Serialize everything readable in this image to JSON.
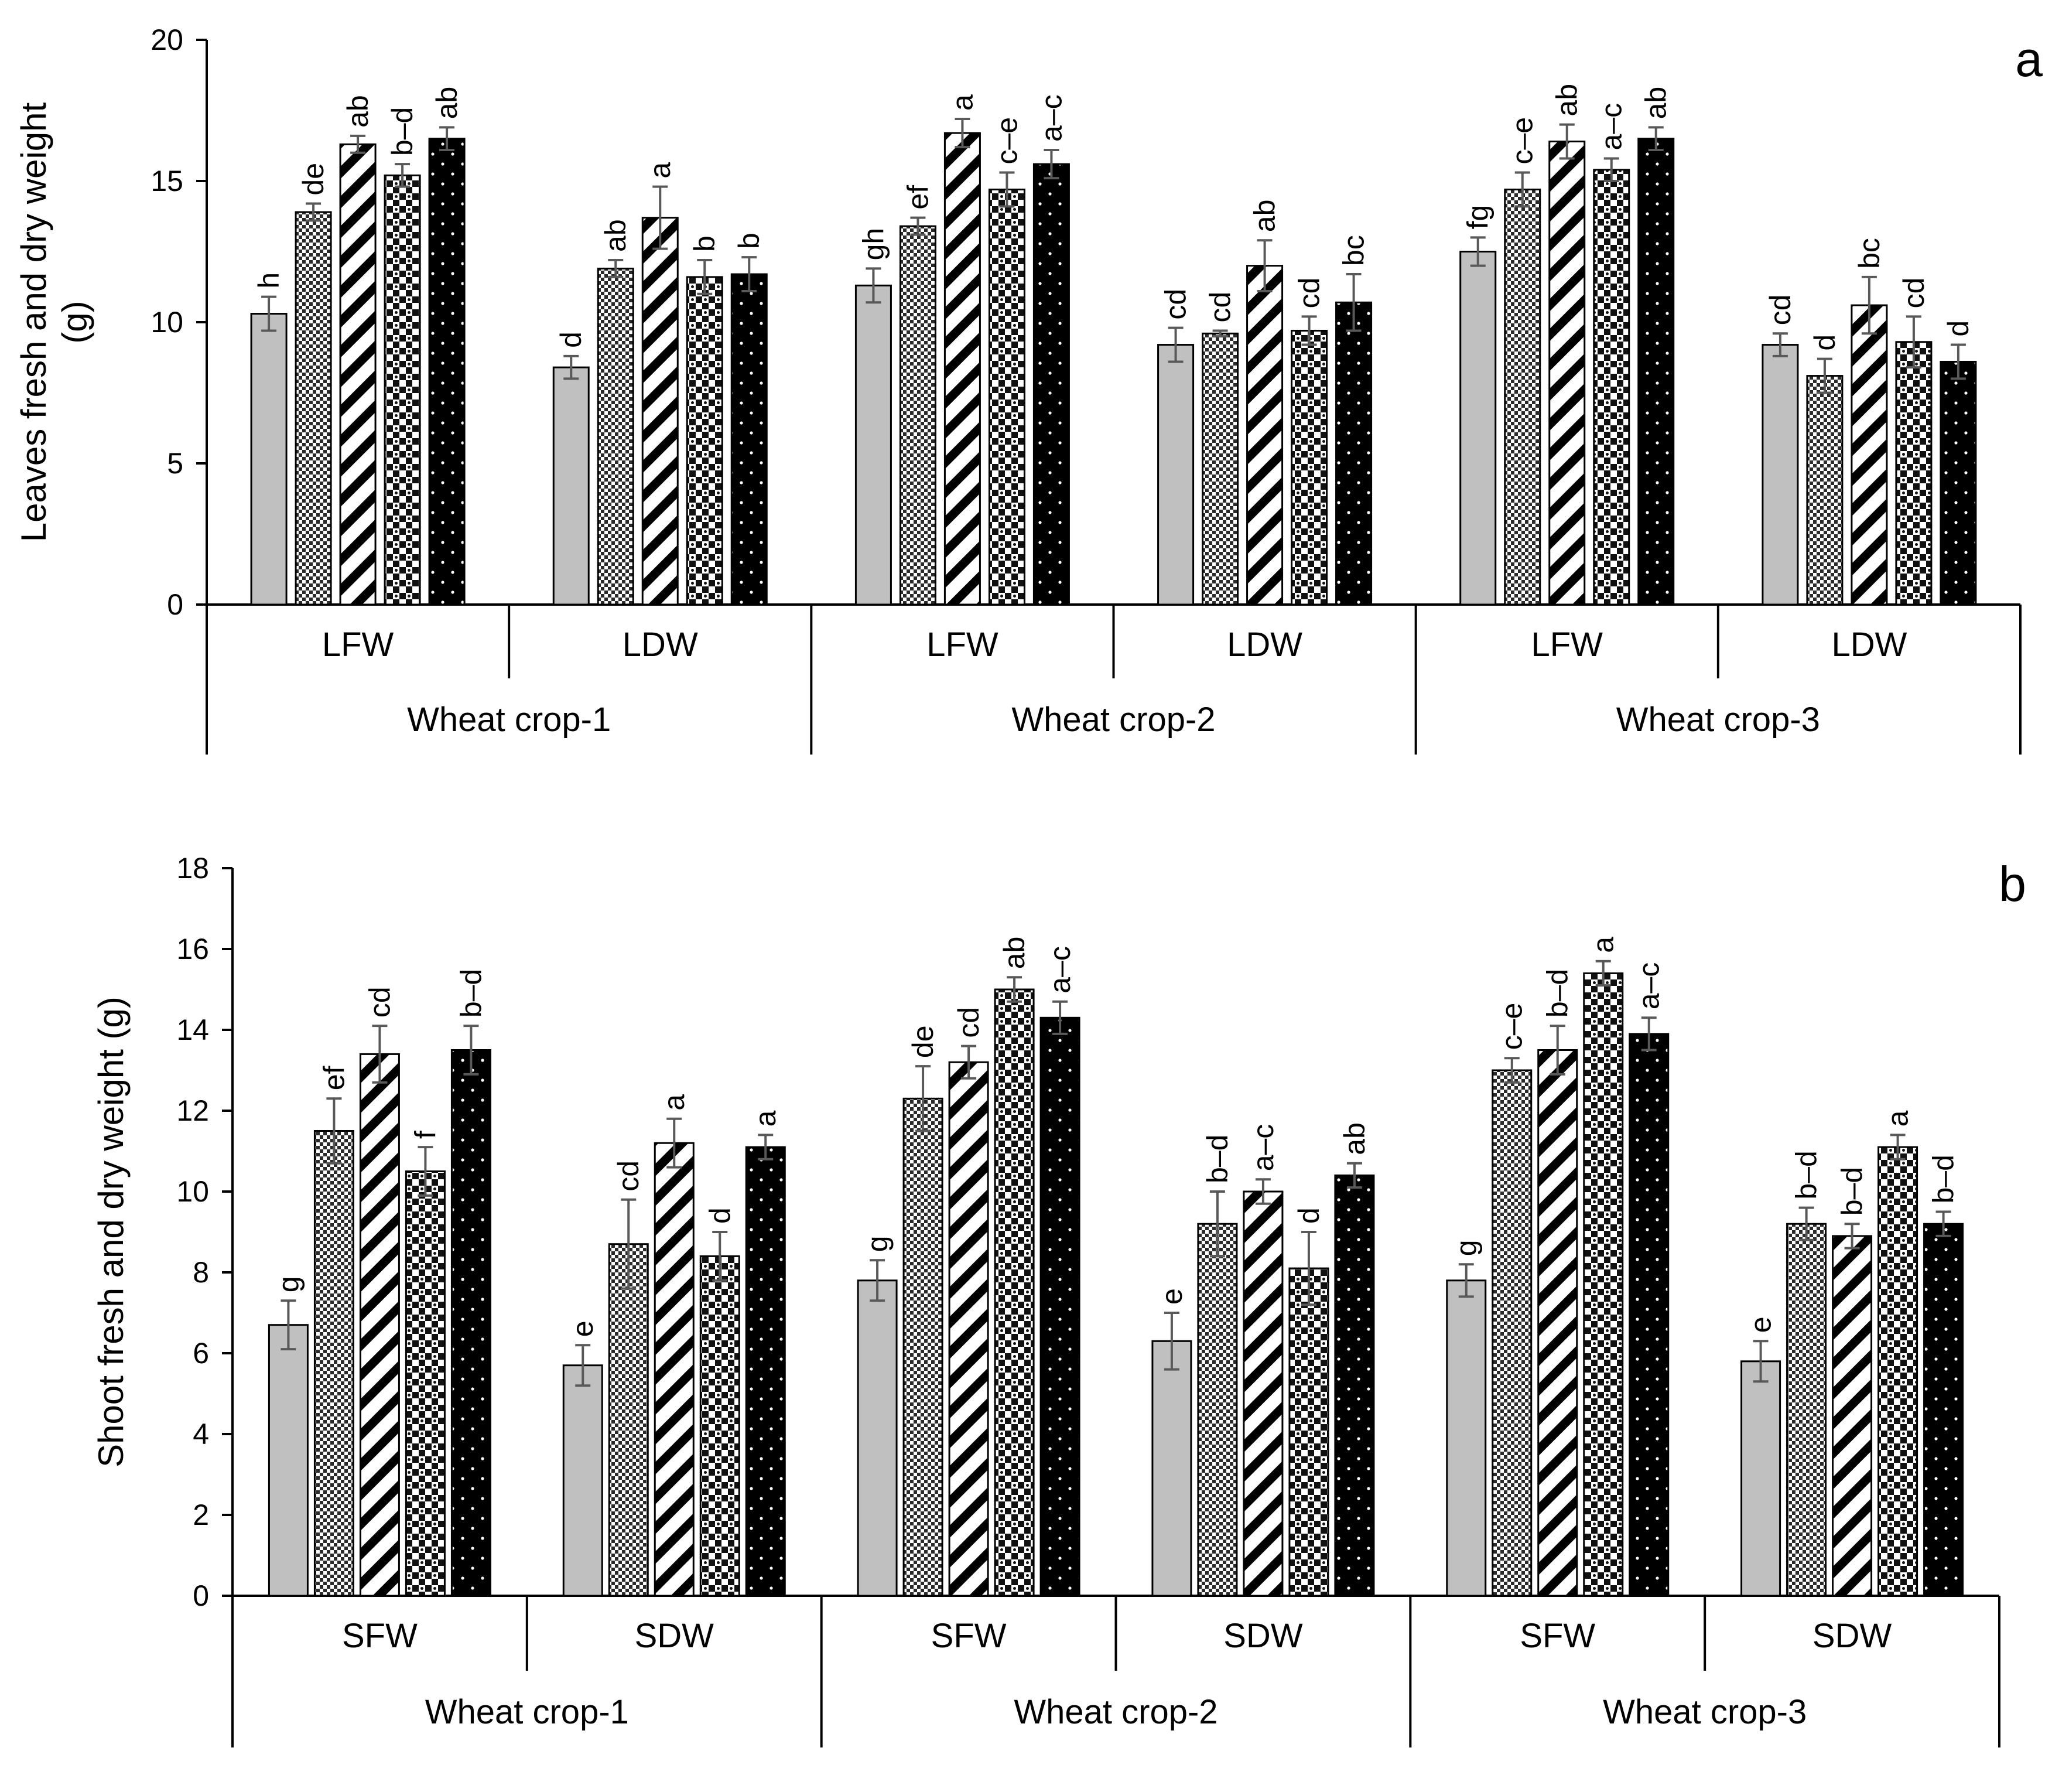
{
  "chart_data": [
    {
      "type": "bar",
      "panel": "a",
      "ylabel_lines": [
        "Leaves fresh and dry weight",
        "(g)"
      ],
      "ylim": [
        0,
        20
      ],
      "yticks": [
        "0",
        "5",
        "10",
        "15",
        "20"
      ],
      "grid": false,
      "subgroups": [
        "LFW",
        "LDW",
        "LFW",
        "LDW",
        "LFW",
        "LDW"
      ],
      "groups": [
        "Wheat crop-1",
        "Wheat crop-2",
        "Wheat crop-3"
      ],
      "series_patterns": [
        "solid-gray",
        "crosshatch",
        "diagonal-stripes",
        "dots-light",
        "dots-dark"
      ],
      "bars": [
        [
          {
            "value": 10.3,
            "err": 0.6,
            "label": "h"
          },
          {
            "value": 13.9,
            "err": 0.3,
            "label": "de"
          },
          {
            "value": 16.3,
            "err": 0.3,
            "label": "ab"
          },
          {
            "value": 15.2,
            "err": 0.4,
            "label": "b–d"
          },
          {
            "value": 16.5,
            "err": 0.4,
            "label": "ab"
          }
        ],
        [
          {
            "value": 8.4,
            "err": 0.4,
            "label": "d"
          },
          {
            "value": 11.9,
            "err": 0.3,
            "label": "ab"
          },
          {
            "value": 13.7,
            "err": 1.1,
            "label": "a"
          },
          {
            "value": 11.6,
            "err": 0.6,
            "label": "b"
          },
          {
            "value": 11.7,
            "err": 0.6,
            "label": "b"
          }
        ],
        [
          {
            "value": 11.3,
            "err": 0.6,
            "label": "gh"
          },
          {
            "value": 13.4,
            "err": 0.3,
            "label": "ef"
          },
          {
            "value": 16.7,
            "err": 0.5,
            "label": "a"
          },
          {
            "value": 14.7,
            "err": 0.6,
            "label": "c–e"
          },
          {
            "value": 15.6,
            "err": 0.5,
            "label": "a–c"
          }
        ],
        [
          {
            "value": 9.2,
            "err": 0.6,
            "label": "cd"
          },
          {
            "value": 9.6,
            "err": 0.1,
            "label": "cd"
          },
          {
            "value": 12.0,
            "err": 0.9,
            "label": "ab"
          },
          {
            "value": 9.7,
            "err": 0.5,
            "label": "cd"
          },
          {
            "value": 10.7,
            "err": 1.0,
            "label": "bc"
          }
        ],
        [
          {
            "value": 12.5,
            "err": 0.5,
            "label": "fg"
          },
          {
            "value": 14.7,
            "err": 0.6,
            "label": "c–e"
          },
          {
            "value": 16.4,
            "err": 0.6,
            "label": "ab"
          },
          {
            "value": 15.4,
            "err": 0.4,
            "label": "a–c"
          },
          {
            "value": 16.5,
            "err": 0.4,
            "label": "ab"
          }
        ],
        [
          {
            "value": 9.2,
            "err": 0.4,
            "label": "cd"
          },
          {
            "value": 8.1,
            "err": 0.6,
            "label": "d"
          },
          {
            "value": 10.6,
            "err": 1.0,
            "label": "bc"
          },
          {
            "value": 9.3,
            "err": 0.9,
            "label": "cd"
          },
          {
            "value": 8.6,
            "err": 0.6,
            "label": "d"
          }
        ]
      ]
    },
    {
      "type": "bar",
      "panel": "b",
      "ylabel_lines": [
        "Shoot fresh and dry weight (g)"
      ],
      "ylim": [
        0,
        18
      ],
      "yticks": [
        "0",
        "2",
        "4",
        "6",
        "8",
        "10",
        "12",
        "14",
        "16",
        "18"
      ],
      "grid": false,
      "subgroups": [
        "SFW",
        "SDW",
        "SFW",
        "SDW",
        "SFW",
        "SDW"
      ],
      "groups": [
        "Wheat crop-1",
        "Wheat crop-2",
        "Wheat crop-3"
      ],
      "series_patterns": [
        "solid-gray",
        "crosshatch",
        "diagonal-stripes",
        "dots-light",
        "dots-dark"
      ],
      "bars": [
        [
          {
            "value": 6.7,
            "err": 0.6,
            "label": "g"
          },
          {
            "value": 11.5,
            "err": 0.8,
            "label": "ef"
          },
          {
            "value": 13.4,
            "err": 0.7,
            "label": "cd"
          },
          {
            "value": 10.5,
            "err": 0.6,
            "label": "f"
          },
          {
            "value": 13.5,
            "err": 0.6,
            "label": "b–d"
          }
        ],
        [
          {
            "value": 5.7,
            "err": 0.5,
            "label": "e"
          },
          {
            "value": 8.7,
            "err": 1.1,
            "label": "cd"
          },
          {
            "value": 11.2,
            "err": 0.6,
            "label": "a"
          },
          {
            "value": 8.4,
            "err": 0.6,
            "label": "d"
          },
          {
            "value": 11.1,
            "err": 0.3,
            "label": "a"
          }
        ],
        [
          {
            "value": 7.8,
            "err": 0.5,
            "label": "g"
          },
          {
            "value": 12.3,
            "err": 0.8,
            "label": "de"
          },
          {
            "value": 13.2,
            "err": 0.4,
            "label": "cd"
          },
          {
            "value": 15.0,
            "err": 0.3,
            "label": "ab"
          },
          {
            "value": 14.3,
            "err": 0.4,
            "label": "a–c"
          }
        ],
        [
          {
            "value": 6.3,
            "err": 0.7,
            "label": "e"
          },
          {
            "value": 9.2,
            "err": 0.8,
            "label": "b–d"
          },
          {
            "value": 10.0,
            "err": 0.3,
            "label": "a–c"
          },
          {
            "value": 8.1,
            "err": 0.9,
            "label": "d"
          },
          {
            "value": 10.4,
            "err": 0.3,
            "label": "ab"
          }
        ],
        [
          {
            "value": 7.8,
            "err": 0.4,
            "label": "g"
          },
          {
            "value": 13.0,
            "err": 0.3,
            "label": "c–e"
          },
          {
            "value": 13.5,
            "err": 0.6,
            "label": "b–d"
          },
          {
            "value": 15.4,
            "err": 0.3,
            "label": "a"
          },
          {
            "value": 13.9,
            "err": 0.4,
            "label": "a–c"
          }
        ],
        [
          {
            "value": 5.8,
            "err": 0.5,
            "label": "e"
          },
          {
            "value": 9.2,
            "err": 0.4,
            "label": "b–d"
          },
          {
            "value": 8.9,
            "err": 0.3,
            "label": "b–d"
          },
          {
            "value": 11.1,
            "err": 0.3,
            "label": "a"
          },
          {
            "value": 9.2,
            "err": 0.3,
            "label": "b–d"
          }
        ]
      ]
    }
  ]
}
